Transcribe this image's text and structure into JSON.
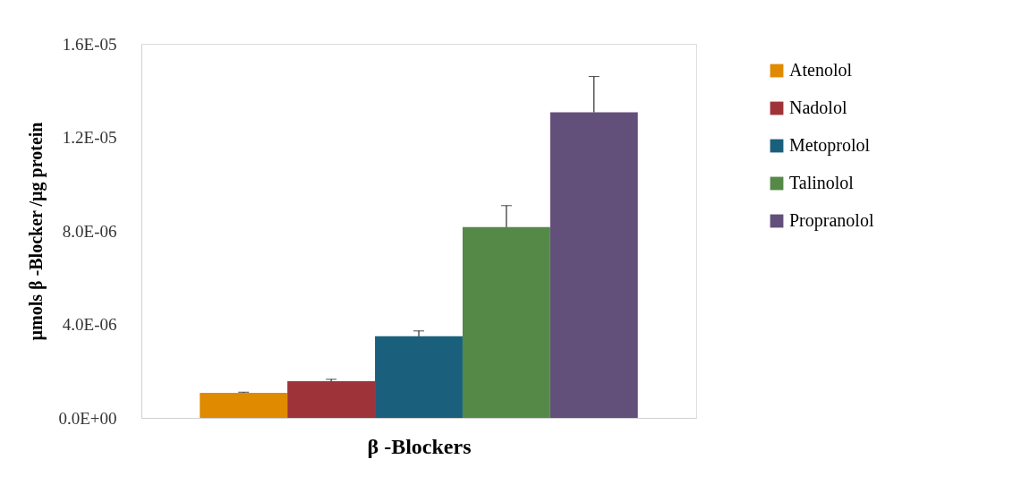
{
  "chart_data": {
    "type": "bar",
    "xlabel": "β -Blockers",
    "ylabel": "µmols β -Blocker /µg protein",
    "categories": [
      null
    ],
    "series": [
      {
        "name": "Atenolol",
        "color": "#e08a00",
        "values": [
          1.07e-06
        ],
        "errors": [
          [
            1.07e-06,
            1.1e-06
          ]
        ]
      },
      {
        "name": "Nadolol",
        "color": "#9e3339",
        "values": [
          1.57e-06
        ],
        "errors": [
          [
            1.57e-06,
            1.65e-06
          ]
        ]
      },
      {
        "name": "Metoprolol",
        "color": "#1a5f7c",
        "values": [
          3.49e-06
        ],
        "errors": [
          [
            3.49e-06,
            3.72e-06
          ]
        ]
      },
      {
        "name": "Talinolol",
        "color": "#548948",
        "values": [
          8.16e-06
        ],
        "errors": [
          [
            8.16e-06,
            9.08e-06
          ]
        ]
      },
      {
        "name": "Propranolol",
        "color": "#624f7a",
        "values": [
          1.307e-05
        ],
        "errors": [
          [
            1.307e-05,
            1.46e-05
          ]
        ]
      }
    ],
    "ylim": [
      0,
      1.6e-05
    ],
    "yticks": [
      {
        "value": 0,
        "label": "0.0E+00"
      },
      {
        "value": 4e-06,
        "label": "4.0E-06"
      },
      {
        "value": 8e-06,
        "label": "8.0E-06"
      },
      {
        "value": 1.2e-05,
        "label": "1.2E-05"
      },
      {
        "value": 1.6e-05,
        "label": "1.6E-05"
      }
    ],
    "grid": false,
    "legend": "right"
  }
}
